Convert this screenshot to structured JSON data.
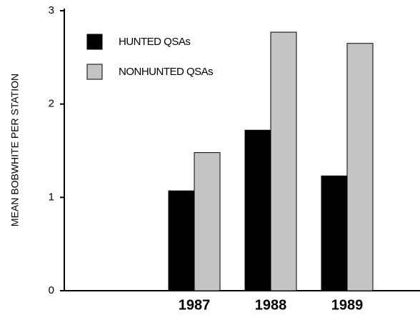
{
  "chart_data": {
    "type": "bar",
    "y_label": "MEAN BOBWHITE PER STATION",
    "categories": [
      "1987",
      "1988",
      "1989"
    ],
    "series": [
      {
        "name": "HUNTED QSAs",
        "color": "#000000",
        "values": [
          1.07,
          1.72,
          1.23
        ]
      },
      {
        "name": "NONHUNTED QSAs",
        "color": "#c4c4c4",
        "values": [
          1.48,
          2.77,
          2.65
        ]
      }
    ],
    "ylim": [
      0,
      3
    ],
    "yticks": [
      0,
      1,
      2,
      3
    ],
    "legend": "upper left"
  }
}
